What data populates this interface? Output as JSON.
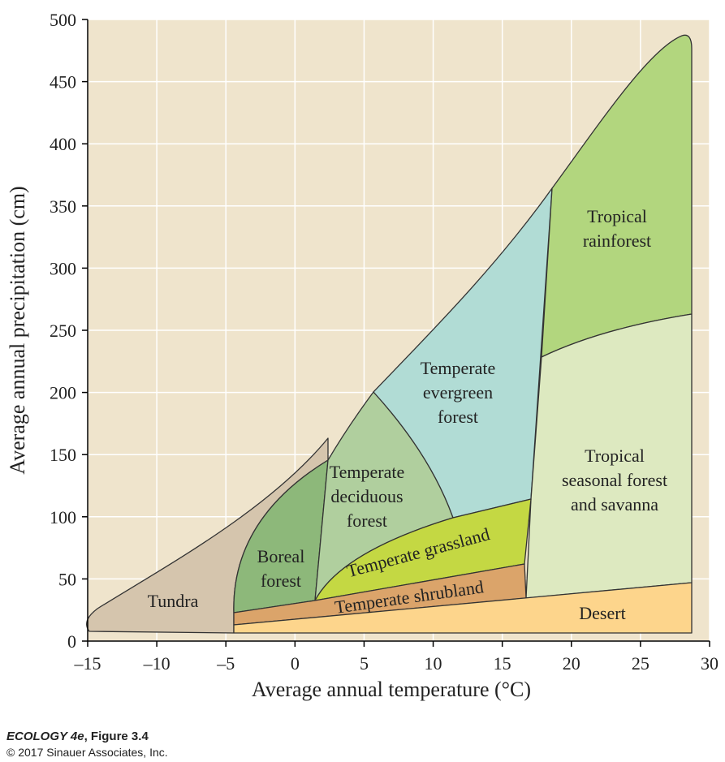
{
  "chart_data": {
    "type": "biome-diagram",
    "x_label": "Average annual temperature (°C)",
    "y_label": "Average annual precipitation (cm)",
    "xlim": [
      -15,
      30
    ],
    "ylim": [
      0,
      500
    ],
    "xticks": [
      {
        "value": -15,
        "label": "–15"
      },
      {
        "value": -10,
        "label": "–10"
      },
      {
        "value": -5,
        "label": "–5"
      },
      0,
      5,
      10,
      15,
      20,
      25,
      30
    ],
    "yticks": [
      0,
      50,
      100,
      150,
      200,
      250,
      300,
      350,
      400,
      450,
      500
    ],
    "grid": true,
    "regions": [
      {
        "lines": [
          "Tundra"
        ],
        "color": "#d5c5ad"
      },
      {
        "lines": [
          "Boreal",
          "forest"
        ],
        "color": "#8db87a"
      },
      {
        "lines": [
          "Temperate",
          "deciduous",
          "forest"
        ],
        "color": "#b0cf9e"
      },
      {
        "lines": [
          "Temperate",
          "evergreen",
          "forest"
        ],
        "color": "#b1dcd5"
      },
      {
        "lines": [
          "Tropical",
          "rainforest"
        ],
        "color": "#b2d67e"
      },
      {
        "lines": [
          "Tropical",
          "seasonal forest",
          "and savanna"
        ],
        "color": "#dde9c0"
      },
      {
        "lines": [
          "Temperate grassland"
        ],
        "color": "#c4d843"
      },
      {
        "lines": [
          "Temperate shrubland"
        ],
        "color": "#dba46a"
      },
      {
        "lines": [
          "Desert"
        ],
        "color": "#fdd58c"
      }
    ]
  },
  "credit": {
    "book": "ECOLOGY 4e",
    "figure": ", Figure 3.4",
    "copyright": "© 2017 Sinauer Associates, Inc."
  }
}
